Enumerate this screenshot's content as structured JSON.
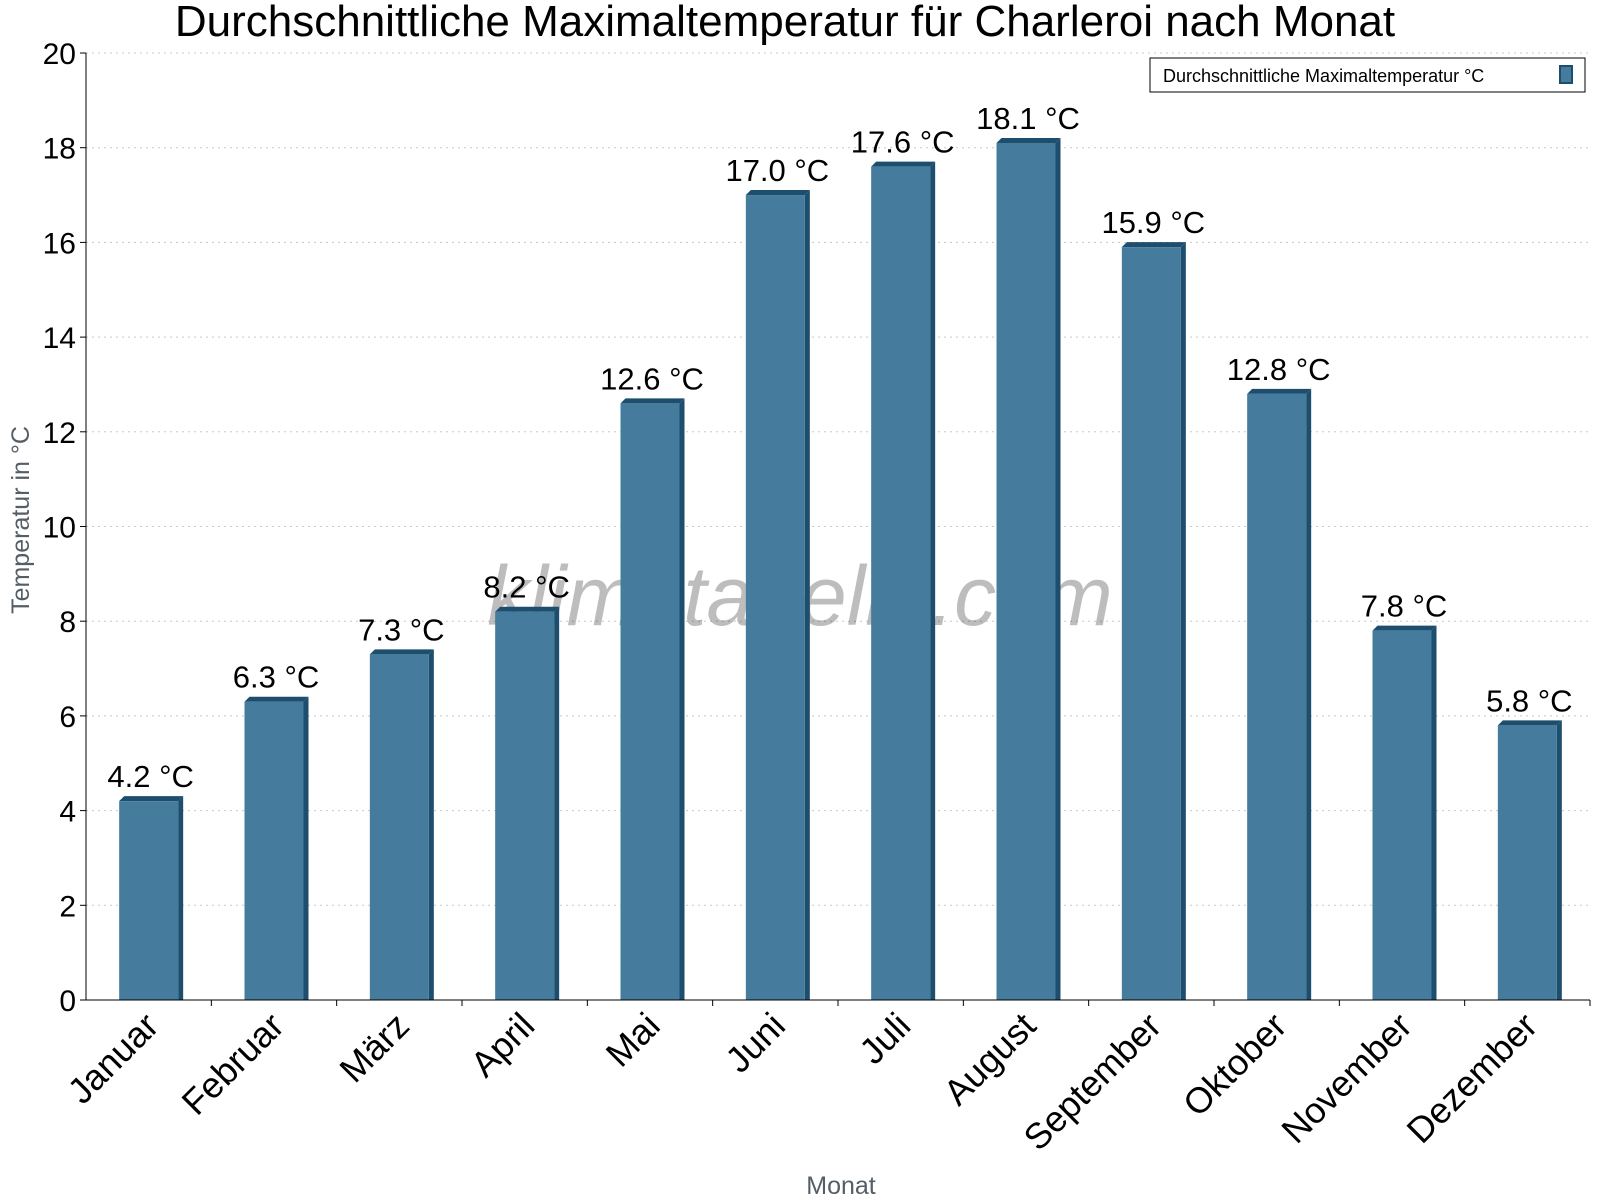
{
  "chart_data": {
    "type": "bar",
    "title": "Durchschnittliche Maximaltemperatur für Charleroi nach Monat",
    "xlabel": "Monat",
    "ylabel": "Temperatur in °C",
    "categories": [
      "Januar",
      "Februar",
      "März",
      "April",
      "Mai",
      "Juni",
      "Juli",
      "August",
      "September",
      "Oktober",
      "November",
      "Dezember"
    ],
    "series": [
      {
        "name": "Durchschnittliche Maximaltemperatur °C",
        "values": [
          4.2,
          6.3,
          7.3,
          8.2,
          12.6,
          17.0,
          17.6,
          18.1,
          15.9,
          12.8,
          7.8,
          5.8
        ],
        "labels": [
          "4.2 °C",
          "6.3 °C",
          "7.3 °C",
          "8.2 °C",
          "12.6 °C",
          "17.0 °C",
          "17.6 °C",
          "18.1 °C",
          "15.9 °C",
          "12.8 °C",
          "7.8 °C",
          "5.8 °C"
        ]
      }
    ],
    "ylim": [
      0,
      20
    ],
    "yticks": [
      "0",
      "2",
      "4",
      "6",
      "8",
      "10",
      "12",
      "14",
      "16",
      "18",
      "20"
    ],
    "grid": true,
    "legend": "top-right",
    "colors": {
      "bar": "#457b9d",
      "bar_edge": "#1d4e6e"
    }
  },
  "watermark": "klimatabelle.com"
}
